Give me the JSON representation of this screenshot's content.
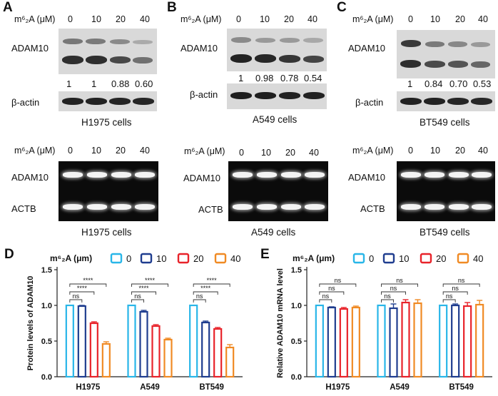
{
  "panels": {
    "A": {
      "letter": "A",
      "header_label": "m⁶₂A (μM)",
      "doses": [
        "0",
        "10",
        "20",
        "40"
      ],
      "target_label": "ADAM10",
      "control_label": "β-actin",
      "quant": [
        "1",
        "1",
        "0.88",
        "0.60"
      ],
      "caption": "H1975 cells",
      "pcr_header_label": "m⁶₂A (μM)",
      "pcr_doses": [
        "0",
        "10",
        "20",
        "40"
      ],
      "pcr_target_label": "ADAM10",
      "pcr_control_label": "ACTB",
      "pcr_caption": "H1975 cells"
    },
    "B": {
      "letter": "B",
      "header_label": "m⁶₂A (μM)",
      "doses": [
        "0",
        "10",
        "20",
        "40"
      ],
      "target_label": "ADAM10",
      "control_label": "β-actin",
      "quant": [
        "1",
        "0.98",
        "0.78",
        "0.54"
      ],
      "caption": "A549 cells",
      "pcr_header_label": "m⁶₂A (μM)",
      "pcr_doses": [
        "0",
        "10",
        "20",
        "40"
      ],
      "pcr_target_label": "ADAM10",
      "pcr_control_label": "ACTB",
      "pcr_caption": "A549 cells"
    },
    "C": {
      "letter": "C",
      "header_label": "m⁶₂A (μM)",
      "doses": [
        "0",
        "10",
        "20",
        "40"
      ],
      "target_label": "ADAM10",
      "control_label": "β-actin",
      "quant": [
        "1",
        "0.84",
        "0.70",
        "0.53"
      ],
      "caption": "BT549 cells",
      "pcr_header_label": "m⁶₂A (μM)",
      "pcr_doses": [
        "0",
        "10",
        "20",
        "40"
      ],
      "pcr_target_label": "ADAM10",
      "pcr_control_label": "ACTB",
      "pcr_caption": "BT549 cells"
    }
  },
  "chart_data": [
    {
      "panel": "D",
      "type": "bar",
      "ylabel": "Protein levels of ADAM10",
      "legend_title": "m⁶₂A (μm)",
      "categories": [
        "H1975",
        "A549",
        "BT549"
      ],
      "series": [
        {
          "name": "0",
          "color": "#29b6e8",
          "values": [
            1.0,
            1.0,
            1.0
          ],
          "errors": [
            0,
            0,
            0
          ]
        },
        {
          "name": "10",
          "color": "#1f3d8f",
          "values": [
            0.99,
            0.91,
            0.76
          ],
          "errors": [
            0.01,
            0.02,
            0.02
          ]
        },
        {
          "name": "20",
          "color": "#e8232a",
          "values": [
            0.75,
            0.71,
            0.67
          ],
          "errors": [
            0.02,
            0.02,
            0.02
          ]
        },
        {
          "name": "40",
          "color": "#f08a24",
          "values": [
            0.46,
            0.52,
            0.41
          ],
          "errors": [
            0.03,
            0.02,
            0.04
          ]
        }
      ],
      "ylim": [
        0,
        1.5
      ],
      "yticks": [
        "0.0",
        "0.5",
        "1.0",
        "1.5"
      ],
      "significance": [
        "ns",
        "****",
        "****"
      ]
    },
    {
      "panel": "E",
      "type": "bar",
      "ylabel": "Relative ADAM10 mRNA level",
      "legend_title": "m⁶₂A (μm)",
      "categories": [
        "H1975",
        "A549",
        "BT549"
      ],
      "series": [
        {
          "name": "0",
          "color": "#29b6e8",
          "values": [
            1.0,
            1.0,
            1.0
          ],
          "errors": [
            0,
            0,
            0
          ]
        },
        {
          "name": "10",
          "color": "#1f3d8f",
          "values": [
            0.97,
            0.96,
            1.0
          ],
          "errors": [
            0.01,
            0.06,
            0.02
          ]
        },
        {
          "name": "20",
          "color": "#e8232a",
          "values": [
            0.95,
            1.04,
            0.99
          ],
          "errors": [
            0.02,
            0.04,
            0.05
          ]
        },
        {
          "name": "40",
          "color": "#f08a24",
          "values": [
            0.97,
            1.03,
            1.01
          ],
          "errors": [
            0.02,
            0.05,
            0.06
          ]
        }
      ],
      "ylim": [
        0,
        1.5
      ],
      "yticks": [
        "0.0",
        "0.5",
        "1.0",
        "1.5"
      ],
      "significance": [
        "ns",
        "ns",
        "ns"
      ]
    }
  ]
}
